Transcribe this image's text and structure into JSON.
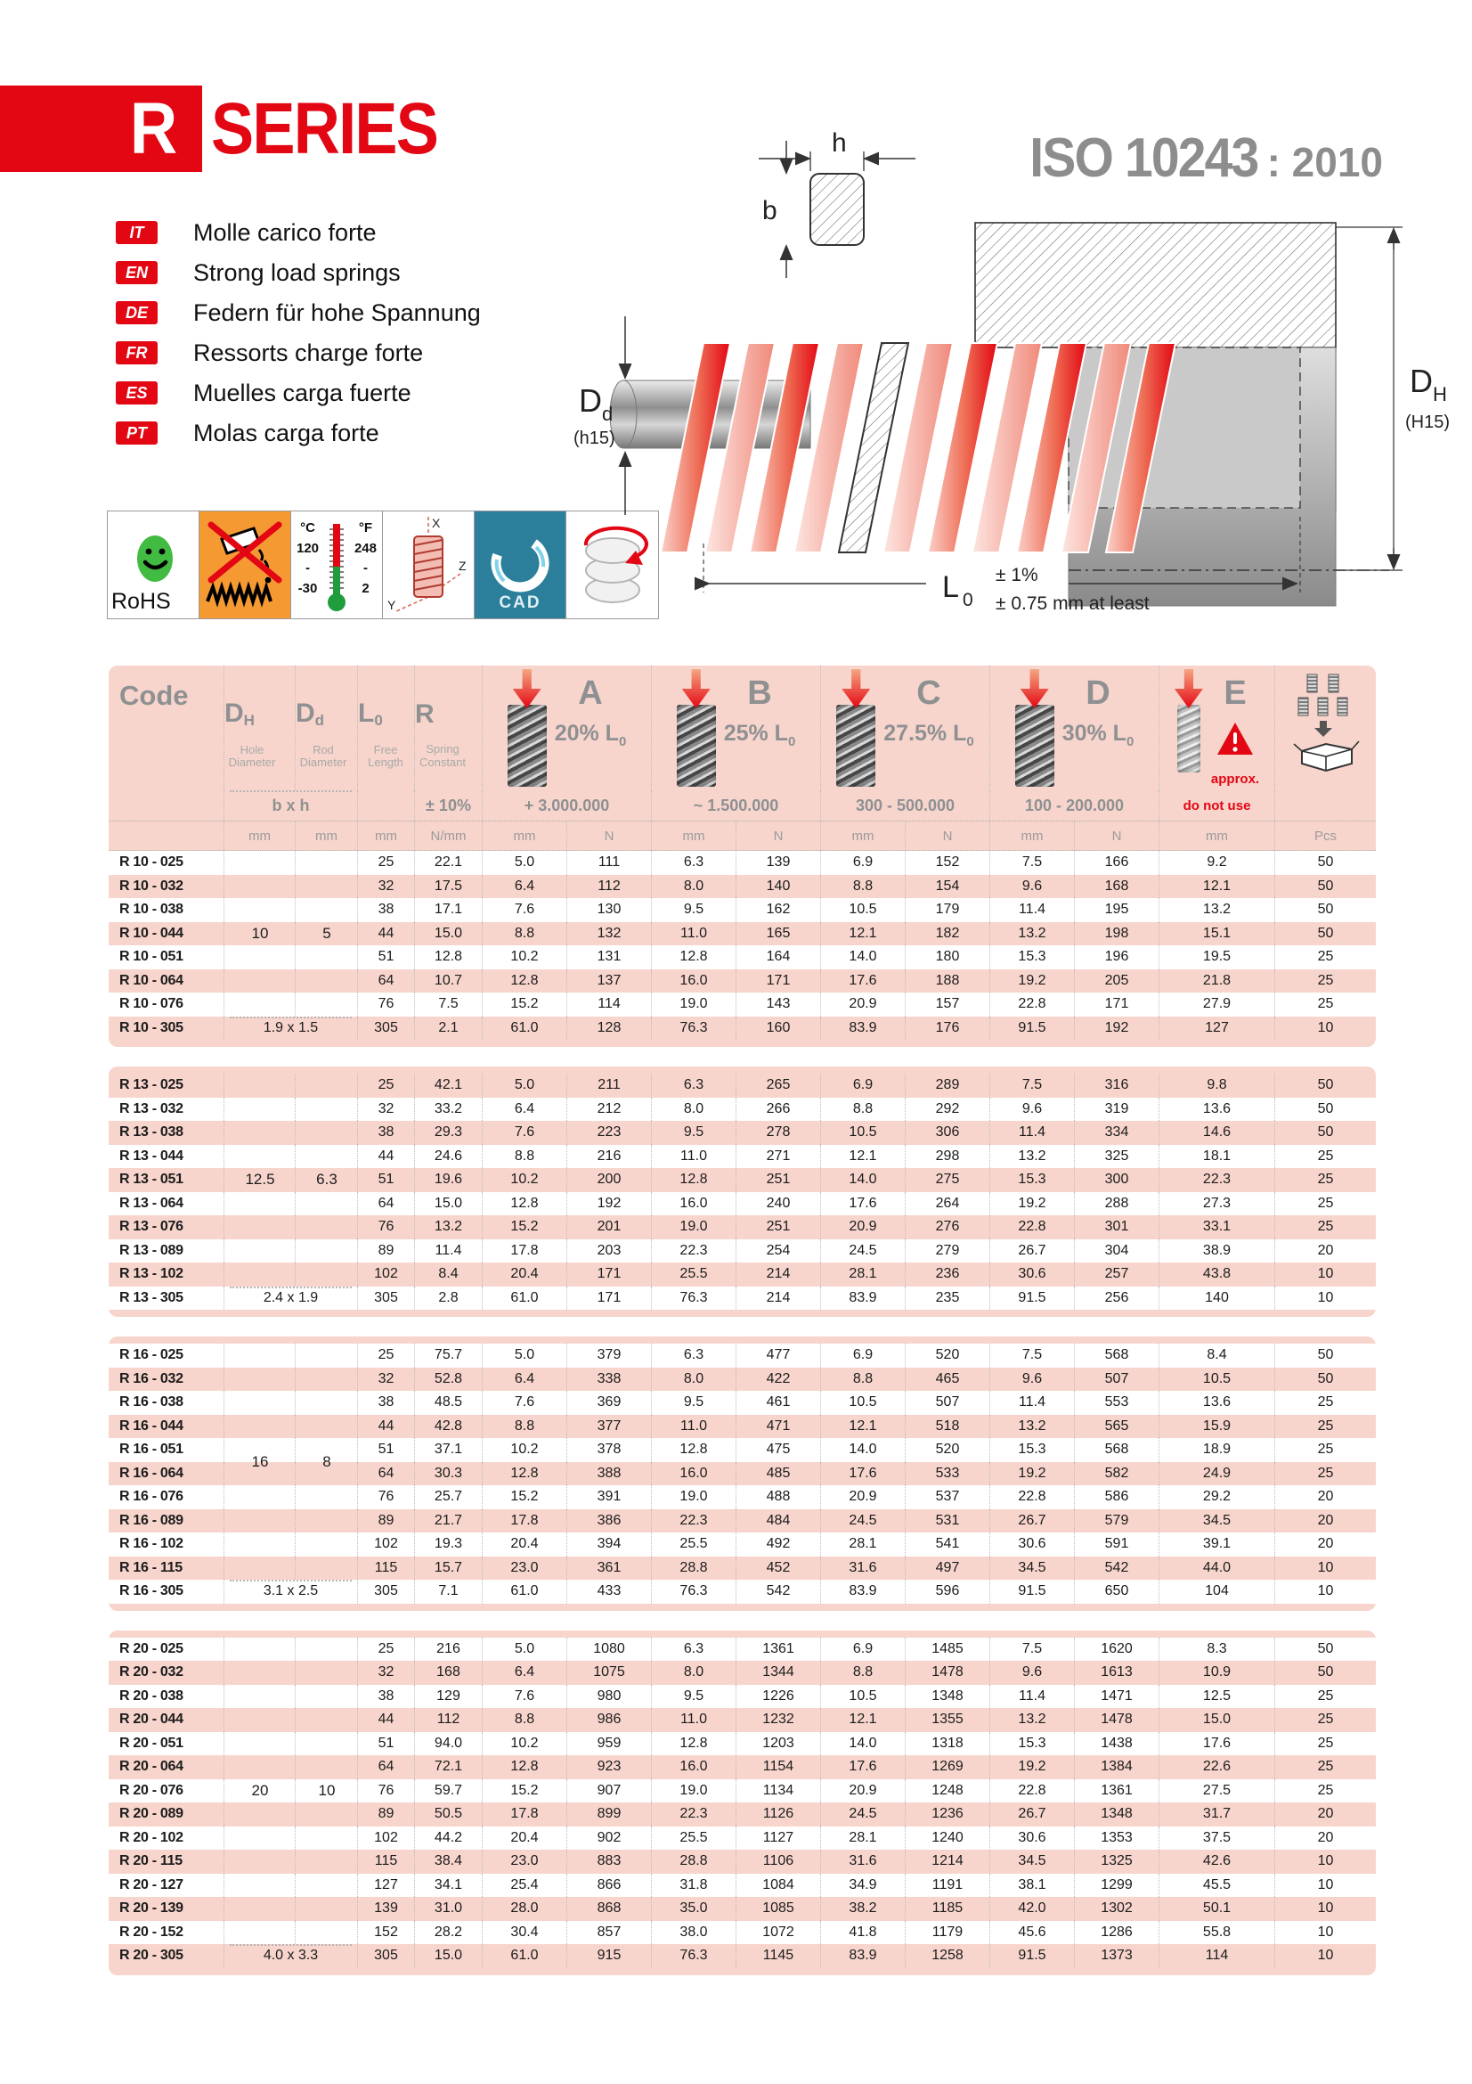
{
  "brand": {
    "series_letter": "R",
    "series_word": "SERIES"
  },
  "standard": {
    "name": "ISO 10243",
    "year": ": 2010"
  },
  "languages": [
    {
      "code": "IT",
      "label": "Molle carico forte"
    },
    {
      "code": "EN",
      "label": "Strong load springs"
    },
    {
      "code": "DE",
      "label": "Federn für hohe Spannung"
    },
    {
      "code": "FR",
      "label": "Ressorts charge forte"
    },
    {
      "code": "ES",
      "label": "Muelles carga fuerte"
    },
    {
      "code": "PT",
      "label": "Molas carga forte"
    }
  ],
  "badges": {
    "rohs": "RoHS",
    "temperature": {
      "c_unit": "°C",
      "c_max": "120",
      "dash1": "-",
      "c_min": "-30",
      "f_unit": "°F",
      "f_max": "248",
      "dash2": "-",
      "f_min": "2"
    },
    "axes": {
      "x": "X",
      "y": "Y",
      "z": "Z"
    },
    "cad": "CAD"
  },
  "diagram": {
    "h": "h",
    "b": "b",
    "dd": {
      "main": "D",
      "sub": "d",
      "fit": "(h15)"
    },
    "dh": {
      "main": "D",
      "sub": "H",
      "fit": "(H15)"
    },
    "l0": {
      "main": "L",
      "sub": "0"
    },
    "tol_pct": "± 1%",
    "tol_mm": "± 0.75 mm at least"
  },
  "table": {
    "header": {
      "code_label": "Code",
      "dh": {
        "letter": "D",
        "sub": "H",
        "desc": "Hole Diameter"
      },
      "dd": {
        "letter": "D",
        "sub": "d",
        "desc": "Rod Diameter"
      },
      "l0": {
        "letter": "L",
        "sub": "0",
        "desc": "Free Length"
      },
      "r": {
        "letter": "R",
        "desc": "Spring Constant",
        "tolerance": "± 10%"
      },
      "bxh_label": "b x h",
      "groups": [
        {
          "letter": "A",
          "pct": "20% L",
          "pct_sub": "0",
          "cycles": "+ 3.000.000"
        },
        {
          "letter": "B",
          "pct": "25% L",
          "pct_sub": "0",
          "cycles": "~ 1.500.000"
        },
        {
          "letter": "C",
          "pct": "27.5% L",
          "pct_sub": "0",
          "cycles": "300 - 500.000"
        },
        {
          "letter": "D",
          "pct": "30% L",
          "pct_sub": "0",
          "cycles": "100 - 200.000"
        }
      ],
      "e": {
        "letter": "E",
        "approx": "approx.",
        "restriction": "do not use"
      },
      "units": [
        "mm",
        "mm",
        "mm",
        "N/mm",
        "mm",
        "N",
        "mm",
        "N",
        "mm",
        "N",
        "mm",
        "N",
        "mm",
        "Pcs"
      ]
    },
    "blocks": [
      {
        "dh": "10",
        "dd": "5",
        "bxh": "1.9 x 1.5",
        "first_row_shaded": false,
        "rows": [
          [
            "R 10 - 025",
            "25",
            "22.1",
            "5.0",
            "111",
            "6.3",
            "139",
            "6.9",
            "152",
            "7.5",
            "166",
            "9.2",
            "50"
          ],
          [
            "R 10 - 032",
            "32",
            "17.5",
            "6.4",
            "112",
            "8.0",
            "140",
            "8.8",
            "154",
            "9.6",
            "168",
            "12.1",
            "50"
          ],
          [
            "R 10 - 038",
            "38",
            "17.1",
            "7.6",
            "130",
            "9.5",
            "162",
            "10.5",
            "179",
            "11.4",
            "195",
            "13.2",
            "50"
          ],
          [
            "R 10 - 044",
            "44",
            "15.0",
            "8.8",
            "132",
            "11.0",
            "165",
            "12.1",
            "182",
            "13.2",
            "198",
            "15.1",
            "50"
          ],
          [
            "R 10 - 051",
            "51",
            "12.8",
            "10.2",
            "131",
            "12.8",
            "164",
            "14.0",
            "180",
            "15.3",
            "196",
            "19.5",
            "25"
          ],
          [
            "R 10 - 064",
            "64",
            "10.7",
            "12.8",
            "137",
            "16.0",
            "171",
            "17.6",
            "188",
            "19.2",
            "205",
            "21.8",
            "25"
          ],
          [
            "R 10 - 076",
            "76",
            "7.5",
            "15.2",
            "114",
            "19.0",
            "143",
            "20.9",
            "157",
            "22.8",
            "171",
            "27.9",
            "25"
          ],
          [
            "R 10 - 305",
            "305",
            "2.1",
            "61.0",
            "128",
            "76.3",
            "160",
            "83.9",
            "176",
            "91.5",
            "192",
            "127",
            "10"
          ]
        ]
      },
      {
        "dh": "12.5",
        "dd": "6.3",
        "bxh": "2.4 x 1.9",
        "first_row_shaded": true,
        "rows": [
          [
            "R 13 - 025",
            "25",
            "42.1",
            "5.0",
            "211",
            "6.3",
            "265",
            "6.9",
            "289",
            "7.5",
            "316",
            "9.8",
            "50"
          ],
          [
            "R 13 - 032",
            "32",
            "33.2",
            "6.4",
            "212",
            "8.0",
            "266",
            "8.8",
            "292",
            "9.6",
            "319",
            "13.6",
            "50"
          ],
          [
            "R 13 - 038",
            "38",
            "29.3",
            "7.6",
            "223",
            "9.5",
            "278",
            "10.5",
            "306",
            "11.4",
            "334",
            "14.6",
            "50"
          ],
          [
            "R 13 - 044",
            "44",
            "24.6",
            "8.8",
            "216",
            "11.0",
            "271",
            "12.1",
            "298",
            "13.2",
            "325",
            "18.1",
            "25"
          ],
          [
            "R 13 - 051",
            "51",
            "19.6",
            "10.2",
            "200",
            "12.8",
            "251",
            "14.0",
            "275",
            "15.3",
            "300",
            "22.3",
            "25"
          ],
          [
            "R 13 - 064",
            "64",
            "15.0",
            "12.8",
            "192",
            "16.0",
            "240",
            "17.6",
            "264",
            "19.2",
            "288",
            "27.3",
            "25"
          ],
          [
            "R 13 - 076",
            "76",
            "13.2",
            "15.2",
            "201",
            "19.0",
            "251",
            "20.9",
            "276",
            "22.8",
            "301",
            "33.1",
            "25"
          ],
          [
            "R 13 - 089",
            "89",
            "11.4",
            "17.8",
            "203",
            "22.3",
            "254",
            "24.5",
            "279",
            "26.7",
            "304",
            "38.9",
            "20"
          ],
          [
            "R 13 - 102",
            "102",
            "8.4",
            "20.4",
            "171",
            "25.5",
            "214",
            "28.1",
            "236",
            "30.6",
            "257",
            "43.8",
            "10"
          ],
          [
            "R 13 - 305",
            "305",
            "2.8",
            "61.0",
            "171",
            "76.3",
            "214",
            "83.9",
            "235",
            "91.5",
            "256",
            "140",
            "10"
          ]
        ]
      },
      {
        "dh": "16",
        "dd": "8",
        "bxh": "3.1 x 2.5",
        "first_row_shaded": false,
        "rows": [
          [
            "R 16 - 025",
            "25",
            "75.7",
            "5.0",
            "379",
            "6.3",
            "477",
            "6.9",
            "520",
            "7.5",
            "568",
            "8.4",
            "50"
          ],
          [
            "R 16 - 032",
            "32",
            "52.8",
            "6.4",
            "338",
            "8.0",
            "422",
            "8.8",
            "465",
            "9.6",
            "507",
            "10.5",
            "50"
          ],
          [
            "R 16 - 038",
            "38",
            "48.5",
            "7.6",
            "369",
            "9.5",
            "461",
            "10.5",
            "507",
            "11.4",
            "553",
            "13.6",
            "25"
          ],
          [
            "R 16 - 044",
            "44",
            "42.8",
            "8.8",
            "377",
            "11.0",
            "471",
            "12.1",
            "518",
            "13.2",
            "565",
            "15.9",
            "25"
          ],
          [
            "R 16 - 051",
            "51",
            "37.1",
            "10.2",
            "378",
            "12.8",
            "475",
            "14.0",
            "520",
            "15.3",
            "568",
            "18.9",
            "25"
          ],
          [
            "R 16 - 064",
            "64",
            "30.3",
            "12.8",
            "388",
            "16.0",
            "485",
            "17.6",
            "533",
            "19.2",
            "582",
            "24.9",
            "25"
          ],
          [
            "R 16 - 076",
            "76",
            "25.7",
            "15.2",
            "391",
            "19.0",
            "488",
            "20.9",
            "537",
            "22.8",
            "586",
            "29.2",
            "20"
          ],
          [
            "R 16 - 089",
            "89",
            "21.7",
            "17.8",
            "386",
            "22.3",
            "484",
            "24.5",
            "531",
            "26.7",
            "579",
            "34.5",
            "20"
          ],
          [
            "R 16 - 102",
            "102",
            "19.3",
            "20.4",
            "394",
            "25.5",
            "492",
            "28.1",
            "541",
            "30.6",
            "591",
            "39.1",
            "20"
          ],
          [
            "R 16 - 115",
            "115",
            "15.7",
            "23.0",
            "361",
            "28.8",
            "452",
            "31.6",
            "497",
            "34.5",
            "542",
            "44.0",
            "10"
          ],
          [
            "R 16 - 305",
            "305",
            "7.1",
            "61.0",
            "433",
            "76.3",
            "542",
            "83.9",
            "596",
            "91.5",
            "650",
            "104",
            "10"
          ]
        ]
      },
      {
        "dh": "20",
        "dd": "10",
        "bxh": "4.0 x 3.3",
        "first_row_shaded": false,
        "rows": [
          [
            "R 20 - 025",
            "25",
            "216",
            "5.0",
            "1080",
            "6.3",
            "1361",
            "6.9",
            "1485",
            "7.5",
            "1620",
            "8.3",
            "50"
          ],
          [
            "R 20 - 032",
            "32",
            "168",
            "6.4",
            "1075",
            "8.0",
            "1344",
            "8.8",
            "1478",
            "9.6",
            "1613",
            "10.9",
            "50"
          ],
          [
            "R 20 - 038",
            "38",
            "129",
            "7.6",
            "980",
            "9.5",
            "1226",
            "10.5",
            "1348",
            "11.4",
            "1471",
            "12.5",
            "25"
          ],
          [
            "R 20 - 044",
            "44",
            "112",
            "8.8",
            "986",
            "11.0",
            "1232",
            "12.1",
            "1355",
            "13.2",
            "1478",
            "15.0",
            "25"
          ],
          [
            "R 20 - 051",
            "51",
            "94.0",
            "10.2",
            "959",
            "12.8",
            "1203",
            "14.0",
            "1318",
            "15.3",
            "1438",
            "17.6",
            "25"
          ],
          [
            "R 20 - 064",
            "64",
            "72.1",
            "12.8",
            "923",
            "16.0",
            "1154",
            "17.6",
            "1269",
            "19.2",
            "1384",
            "22.6",
            "25"
          ],
          [
            "R 20 - 076",
            "76",
            "59.7",
            "15.2",
            "907",
            "19.0",
            "1134",
            "20.9",
            "1248",
            "22.8",
            "1361",
            "27.5",
            "25"
          ],
          [
            "R 20 - 089",
            "89",
            "50.5",
            "17.8",
            "899",
            "22.3",
            "1126",
            "24.5",
            "1236",
            "26.7",
            "1348",
            "31.7",
            "20"
          ],
          [
            "R 20 - 102",
            "102",
            "44.2",
            "20.4",
            "902",
            "25.5",
            "1127",
            "28.1",
            "1240",
            "30.6",
            "1353",
            "37.5",
            "20"
          ],
          [
            "R 20 - 115",
            "115",
            "38.4",
            "23.0",
            "883",
            "28.8",
            "1106",
            "31.6",
            "1214",
            "34.5",
            "1325",
            "42.6",
            "10"
          ],
          [
            "R 20 - 127",
            "127",
            "34.1",
            "25.4",
            "866",
            "31.8",
            "1084",
            "34.9",
            "1191",
            "38.1",
            "1299",
            "45.5",
            "10"
          ],
          [
            "R 20 - 139",
            "139",
            "31.0",
            "28.0",
            "868",
            "35.0",
            "1085",
            "38.2",
            "1185",
            "42.0",
            "1302",
            "50.1",
            "10"
          ],
          [
            "R 20 - 152",
            "152",
            "28.2",
            "30.4",
            "857",
            "38.0",
            "1072",
            "41.8",
            "1179",
            "45.6",
            "1286",
            "55.8",
            "10"
          ],
          [
            "R 20 - 305",
            "305",
            "15.0",
            "61.0",
            "915",
            "76.3",
            "1145",
            "83.9",
            "1258",
            "91.5",
            "1373",
            "114",
            "10"
          ]
        ]
      }
    ]
  }
}
